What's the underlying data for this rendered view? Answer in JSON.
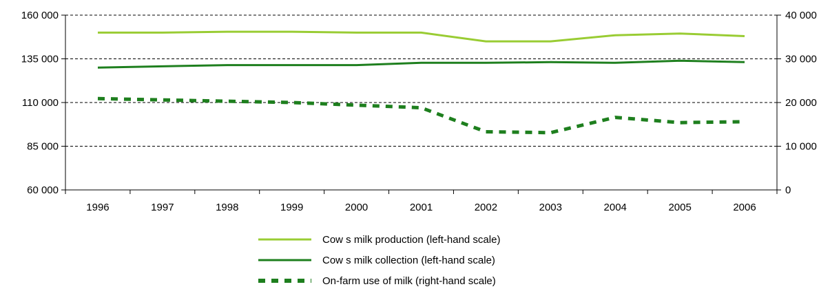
{
  "chart_data": {
    "type": "line",
    "title": "",
    "categories": [
      "1996",
      "1997",
      "1998",
      "1999",
      "2000",
      "2001",
      "2002",
      "2003",
      "2004",
      "2005",
      "2006"
    ],
    "left_axis": {
      "ylim": [
        60000,
        160000
      ],
      "ticks": [
        60000,
        85000,
        110000,
        135000,
        160000
      ],
      "tick_labels": [
        "60 000",
        "85 000",
        "110 000",
        "135 000",
        "160 000"
      ]
    },
    "right_axis": {
      "ylim": [
        0,
        40000
      ],
      "ticks": [
        0,
        10000,
        20000,
        30000,
        40000
      ],
      "tick_labels": [
        "0",
        "10 000",
        "20 000",
        "30 000",
        "40 000"
      ]
    },
    "grid": "horizontal dashed",
    "legend_position": "bottom-center",
    "series": [
      {
        "name": "Cow s milk production (left-hand scale)",
        "axis": "left",
        "style": "solid",
        "color": "#99CC33",
        "values": [
          150000,
          150000,
          150500,
          150500,
          150000,
          150000,
          145000,
          145000,
          148500,
          149500,
          148000
        ]
      },
      {
        "name": "Cow s milk collection (left-hand scale)",
        "axis": "left",
        "style": "solid",
        "color": "#1E7F1E",
        "values": [
          130000,
          130700,
          131400,
          131400,
          131400,
          132700,
          132700,
          133100,
          132700,
          133900,
          133100
        ]
      },
      {
        "name": "On-farm use of milk (right-hand scale)",
        "axis": "right",
        "style": "dashed",
        "color": "#1E7F1E",
        "values": [
          20900,
          20600,
          20300,
          20000,
          19400,
          18800,
          13300,
          13100,
          16600,
          15400,
          15600
        ]
      }
    ]
  }
}
